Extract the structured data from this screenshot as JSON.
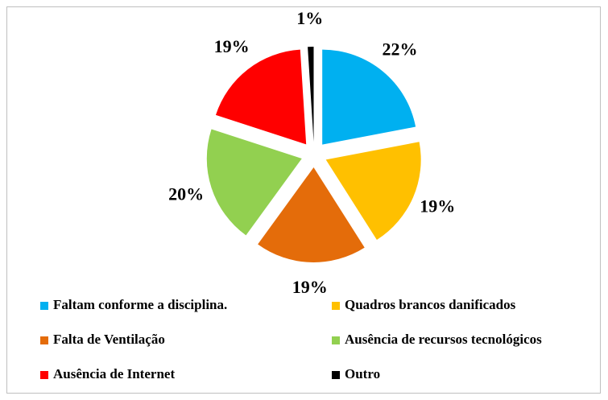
{
  "chart_data": {
    "type": "pie",
    "categories": [
      "Faltam conforme a disciplina.",
      "Quadros brancos danificados",
      "Falta de Ventilação",
      "Ausência de recursos tecnológicos",
      "Ausência de Internet",
      "Outro"
    ],
    "values": [
      22,
      19,
      19,
      20,
      19,
      1
    ],
    "value_labels": [
      "22%",
      "19%",
      "19%",
      "20%",
      "19%",
      "1%"
    ],
    "colors": [
      "#00b0f0",
      "#ffc000",
      "#e46c0a",
      "#92d050",
      "#ff0000",
      "#000000"
    ]
  }
}
